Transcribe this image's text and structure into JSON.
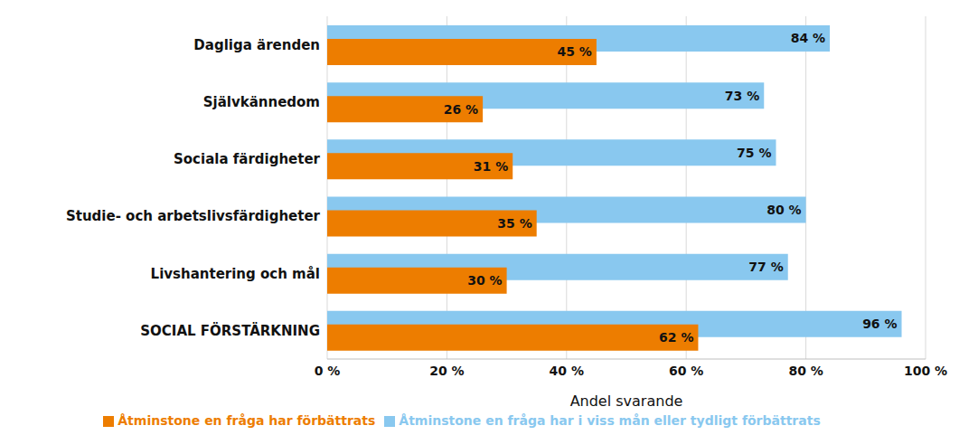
{
  "chart_data": {
    "type": "bar",
    "orientation": "horizontal",
    "categories": [
      "Dagliga ärenden",
      "Självkännedom",
      "Sociala färdigheter",
      "Studie- och arbetslivsfärdigheter",
      "Livshantering och mål",
      "SOCIAL FÖRSTÄRKNING"
    ],
    "series": [
      {
        "name": "Åtminstone en fråga har i viss mån eller tydligt förbättrats",
        "color": "#89c8ef",
        "values": [
          84,
          73,
          75,
          80,
          77,
          96
        ],
        "value_labels": [
          "84 %",
          "73 %",
          "75 %",
          "80 %",
          "77 %",
          "96 %"
        ]
      },
      {
        "name": "Åtminstone en fråga har förbättrats",
        "color": "#ed7d00",
        "values": [
          45,
          26,
          31,
          35,
          30,
          62
        ],
        "value_labels": [
          "45 %",
          "26 %",
          "31 %",
          "35 %",
          "30 %",
          "62 %"
        ]
      }
    ],
    "xlim": [
      0,
      100
    ],
    "xticks": [
      {
        "value": 0,
        "label": "0 %"
      },
      {
        "value": 20,
        "label": "20 %"
      },
      {
        "value": 40,
        "label": "40 %"
      },
      {
        "value": 60,
        "label": "60 %"
      },
      {
        "value": 80,
        "label": "80 %"
      },
      {
        "value": 100,
        "label": "100 %"
      }
    ],
    "xlabel": "Andel svarande",
    "grid": true,
    "legend": "bottom",
    "data_labels": true
  }
}
